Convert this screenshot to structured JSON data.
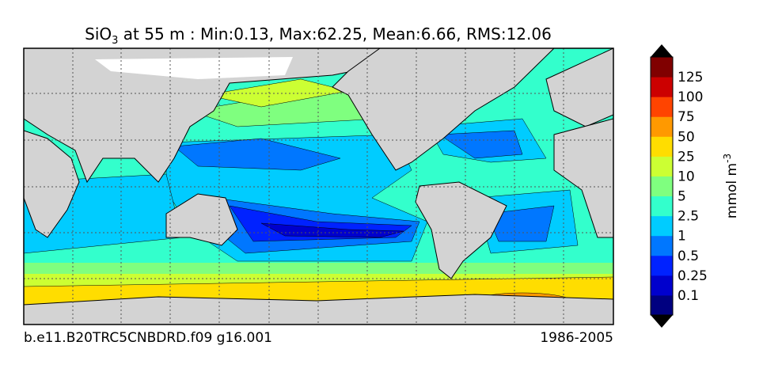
{
  "title": {
    "variable": "SiO",
    "subscript": "3",
    "rest": " at 55 m : Min:0.13, Max:62.25, Mean:6.66, RMS:12.06"
  },
  "footer": {
    "left": "b.e11.B20TRC5CNBDRD.f09 g16.001",
    "right": "1986-2005"
  },
  "colorbar": {
    "label": "mmol m",
    "label_sup": "-3",
    "levels": [
      0.1,
      0.25,
      0.5,
      1,
      2.5,
      5,
      10,
      25,
      50,
      75,
      100,
      125
    ],
    "colors": [
      "#000080",
      "#0000cd",
      "#0022ff",
      "#0077ff",
      "#00ccff",
      "#33ffcc",
      "#7fff7f",
      "#ccff33",
      "#ffdd00",
      "#ff9900",
      "#ff4400",
      "#cc0000",
      "#800000"
    ],
    "extend_color": "#000000"
  }
}
